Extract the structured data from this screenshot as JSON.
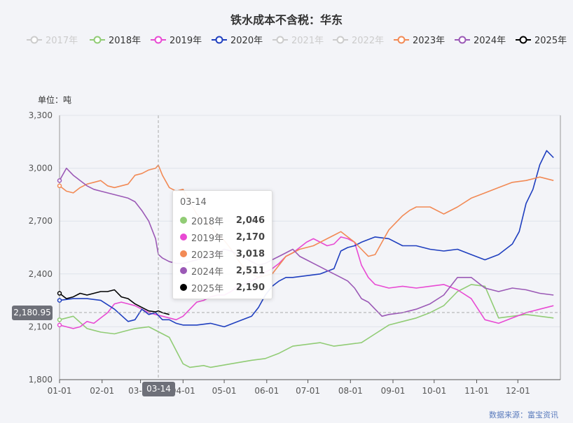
{
  "chart_data": {
    "type": "line",
    "title": "铁水成本不含税：华东",
    "unit_label": "单位：吨",
    "source": "数据来源：富宝资讯",
    "x_ticks": [
      "01-01",
      "02-01",
      "03-01",
      "04-01",
      "05-01",
      "06-01",
      "07-01",
      "08-01",
      "09-01",
      "10-01",
      "11-01",
      "12-01"
    ],
    "y_ticks": [
      "1,800",
      "2,100",
      "2,400",
      "2,700",
      "3,000",
      "3,300"
    ],
    "ylim": [
      1800,
      3300
    ],
    "legend": [
      {
        "name": "2017年",
        "color": "#cccccc",
        "active": false
      },
      {
        "name": "2018年",
        "color": "#91cc75",
        "active": true
      },
      {
        "name": "2019年",
        "color": "#e84ad3",
        "active": true
      },
      {
        "name": "2020年",
        "color": "#1f3fbf",
        "active": true
      },
      {
        "name": "2021年",
        "color": "#cccccc",
        "active": false
      },
      {
        "name": "2022年",
        "color": "#cccccc",
        "active": false
      },
      {
        "name": "2023年",
        "color": "#f28a55",
        "active": true
      },
      {
        "name": "2024年",
        "color": "#9b59b6",
        "active": true
      },
      {
        "name": "2025年",
        "color": "#000000",
        "active": true
      }
    ],
    "series": [
      {
        "name": "2018年",
        "color": "#91cc75",
        "x": [
          0,
          10,
          20,
          30,
          40,
          50,
          55,
          65,
          70,
          80,
          90,
          95,
          105,
          110,
          125,
          140,
          150,
          160,
          170,
          180,
          190,
          200,
          210,
          220,
          230,
          240,
          250,
          260,
          270,
          280,
          290,
          300,
          310,
          320,
          330,
          340,
          350,
          360
        ],
        "values": [
          2140,
          2160,
          2090,
          2070,
          2060,
          2080,
          2090,
          2100,
          2080,
          2040,
          1890,
          1870,
          1880,
          1870,
          1890,
          1910,
          1920,
          1950,
          1990,
          2000,
          2010,
          1990,
          2000,
          2010,
          2060,
          2110,
          2130,
          2150,
          2180,
          2220,
          2300,
          2340,
          2330,
          2150,
          2160,
          2170,
          2160,
          2150
        ]
      },
      {
        "name": "2019年",
        "color": "#e84ad3",
        "x": [
          0,
          10,
          15,
          20,
          25,
          30,
          35,
          40,
          45,
          50,
          55,
          60,
          65,
          70,
          75,
          80,
          85,
          90,
          95,
          100,
          105,
          110,
          115,
          120,
          125,
          130,
          140,
          145,
          150,
          155,
          160,
          165,
          170,
          175,
          180,
          185,
          190,
          195,
          200,
          205,
          210,
          215,
          220,
          225,
          230,
          235,
          240,
          250,
          260,
          270,
          280,
          290,
          300,
          310,
          320,
          330,
          340,
          350,
          360
        ],
        "values": [
          2110,
          2090,
          2100,
          2130,
          2120,
          2150,
          2180,
          2230,
          2240,
          2230,
          2220,
          2200,
          2180,
          2170,
          2160,
          2150,
          2140,
          2160,
          2200,
          2240,
          2250,
          2270,
          2280,
          2280,
          2300,
          2330,
          2360,
          2380,
          2410,
          2430,
          2460,
          2500,
          2520,
          2550,
          2580,
          2600,
          2580,
          2560,
          2570,
          2610,
          2600,
          2580,
          2450,
          2380,
          2340,
          2330,
          2320,
          2330,
          2320,
          2330,
          2340,
          2310,
          2260,
          2140,
          2120,
          2150,
          2180,
          2200,
          2220
        ]
      },
      {
        "name": "2020年",
        "color": "#1f3fbf",
        "x": [
          0,
          10,
          20,
          30,
          40,
          50,
          55,
          60,
          65,
          70,
          75,
          80,
          85,
          90,
          100,
          110,
          120,
          130,
          140,
          145,
          150,
          155,
          160,
          165,
          170,
          180,
          190,
          200,
          205,
          210,
          215,
          220,
          230,
          240,
          250,
          260,
          270,
          280,
          290,
          300,
          310,
          320,
          330,
          335,
          340,
          345,
          350,
          355,
          360
        ],
        "values": [
          2250,
          2260,
          2260,
          2250,
          2200,
          2130,
          2140,
          2200,
          2170,
          2180,
          2140,
          2140,
          2120,
          2110,
          2110,
          2120,
          2100,
          2130,
          2160,
          2210,
          2280,
          2330,
          2360,
          2380,
          2380,
          2390,
          2400,
          2430,
          2530,
          2550,
          2560,
          2580,
          2610,
          2600,
          2560,
          2560,
          2540,
          2530,
          2540,
          2510,
          2480,
          2510,
          2570,
          2640,
          2800,
          2880,
          3020,
          3100,
          3060
        ]
      },
      {
        "name": "2023年",
        "color": "#f28a55",
        "x": [
          0,
          5,
          10,
          15,
          20,
          25,
          30,
          35,
          40,
          45,
          50,
          55,
          60,
          65,
          70,
          72,
          75,
          80,
          85,
          90,
          95,
          100,
          105,
          110,
          115,
          120,
          125,
          130,
          135,
          140,
          145,
          150,
          155,
          160,
          165,
          170,
          175,
          180,
          185,
          190,
          195,
          200,
          205,
          210,
          215,
          220,
          225,
          230,
          235,
          240,
          250,
          255,
          260,
          270,
          280,
          290,
          300,
          310,
          320,
          330,
          340,
          350,
          355,
          360
        ],
        "values": [
          2900,
          2870,
          2860,
          2890,
          2910,
          2920,
          2930,
          2900,
          2890,
          2900,
          2910,
          2960,
          2970,
          2990,
          3000,
          3018,
          2960,
          2890,
          2870,
          2880,
          2810,
          2740,
          2700,
          2670,
          2620,
          2590,
          2540,
          2480,
          2430,
          2400,
          2380,
          2390,
          2400,
          2450,
          2500,
          2520,
          2540,
          2550,
          2560,
          2580,
          2600,
          2620,
          2640,
          2610,
          2580,
          2540,
          2500,
          2510,
          2580,
          2650,
          2730,
          2760,
          2780,
          2780,
          2740,
          2780,
          2830,
          2860,
          2890,
          2920,
          2930,
          2950,
          2940,
          2930
        ]
      },
      {
        "name": "2024年",
        "color": "#9b59b6",
        "x": [
          0,
          5,
          10,
          15,
          20,
          25,
          30,
          35,
          40,
          45,
          50,
          55,
          60,
          65,
          70,
          72,
          75,
          80,
          85,
          90,
          95,
          100,
          105,
          110,
          115,
          120,
          125,
          130,
          135,
          140,
          145,
          150,
          155,
          160,
          165,
          170,
          175,
          180,
          185,
          190,
          195,
          200,
          205,
          210,
          215,
          220,
          225,
          230,
          235,
          240,
          250,
          260,
          270,
          280,
          290,
          300,
          310,
          320,
          330,
          340,
          350,
          360
        ],
        "values": [
          2930,
          3000,
          2960,
          2930,
          2900,
          2880,
          2870,
          2860,
          2850,
          2840,
          2830,
          2810,
          2760,
          2700,
          2600,
          2511,
          2490,
          2470,
          2460,
          2460,
          2470,
          2480,
          2490,
          2510,
          2520,
          2540,
          2530,
          2510,
          2490,
          2470,
          2450,
          2460,
          2480,
          2500,
          2520,
          2540,
          2500,
          2480,
          2460,
          2440,
          2420,
          2400,
          2380,
          2360,
          2320,
          2260,
          2240,
          2200,
          2160,
          2170,
          2180,
          2200,
          2230,
          2280,
          2380,
          2380,
          2320,
          2300,
          2320,
          2310,
          2290,
          2280
        ]
      },
      {
        "name": "2025年",
        "color": "#000000",
        "x": [
          0,
          5,
          10,
          15,
          20,
          25,
          30,
          35,
          40,
          45,
          50,
          55,
          60,
          65,
          70,
          72,
          75,
          80
        ],
        "values": [
          2290,
          2260,
          2270,
          2290,
          2280,
          2290,
          2300,
          2300,
          2310,
          2270,
          2260,
          2230,
          2210,
          2190,
          2185,
          2190,
          2180,
          2170
        ]
      }
    ],
    "tooltip": {
      "date": "03-14",
      "rows": [
        {
          "name": "2018年",
          "value": "2,046",
          "color": "#91cc75"
        },
        {
          "name": "2019年",
          "value": "2,170",
          "color": "#e84ad3"
        },
        {
          "name": "2023年",
          "value": "3,018",
          "color": "#f28a55"
        },
        {
          "name": "2024年",
          "value": "2,511",
          "color": "#9b59b6"
        },
        {
          "name": "2025年",
          "value": "2,190",
          "color": "#000000"
        }
      ]
    },
    "pointer": {
      "x_label": "03-14",
      "y_label": "2,180.95",
      "x_day": 72,
      "y_value": 2180.95
    }
  }
}
